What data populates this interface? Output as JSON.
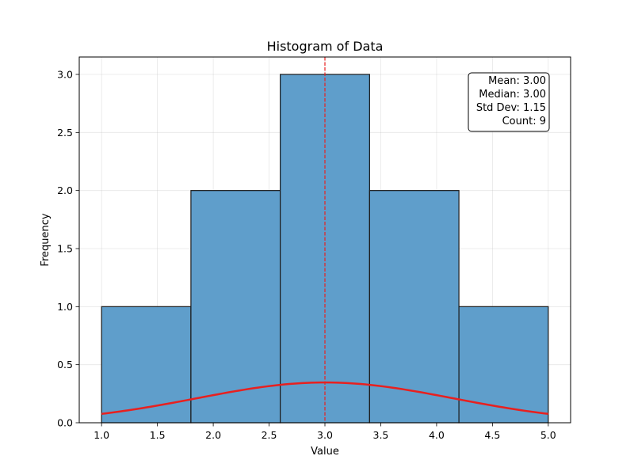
{
  "chart_data": {
    "type": "bar",
    "title": "Histogram of Data",
    "xlabel": "Value",
    "ylabel": "Frequency",
    "xlim": [
      0.8,
      5.2
    ],
    "ylim": [
      0,
      3.15
    ],
    "xticks": [
      1.0,
      1.5,
      2.0,
      2.5,
      3.0,
      3.5,
      4.0,
      4.5,
      5.0
    ],
    "xtick_labels": [
      "1.0",
      "1.5",
      "2.0",
      "2.5",
      "3.0",
      "3.5",
      "4.0",
      "4.5",
      "5.0"
    ],
    "yticks": [
      0.0,
      0.5,
      1.0,
      1.5,
      2.0,
      2.5,
      3.0
    ],
    "ytick_labels": [
      "0.0",
      "0.5",
      "1.0",
      "1.5",
      "2.0",
      "2.5",
      "3.0"
    ],
    "grid": true,
    "bins": [
      {
        "start": 1.0,
        "end": 1.8,
        "count": 1
      },
      {
        "start": 1.8,
        "end": 2.6,
        "count": 2
      },
      {
        "start": 2.6,
        "end": 3.4,
        "count": 3
      },
      {
        "start": 3.4,
        "end": 4.2,
        "count": 2
      },
      {
        "start": 4.2,
        "end": 5.0,
        "count": 1
      }
    ],
    "mean_line": {
      "x": 3.0,
      "color": "#e8201f",
      "style": "dashed"
    },
    "normal_curve": {
      "mean": 3.0,
      "std": 1.15,
      "x_range": [
        1.0,
        5.0
      ],
      "color": "#e8201f"
    },
    "bar_color": "#5f9ecb",
    "bar_edge_color": "#1a1a1a",
    "stats_box": {
      "placement": "top-right",
      "lines": [
        "Mean: 3.00",
        "Median: 3.00",
        "Std Dev: 1.15",
        "Count: 9"
      ]
    }
  }
}
